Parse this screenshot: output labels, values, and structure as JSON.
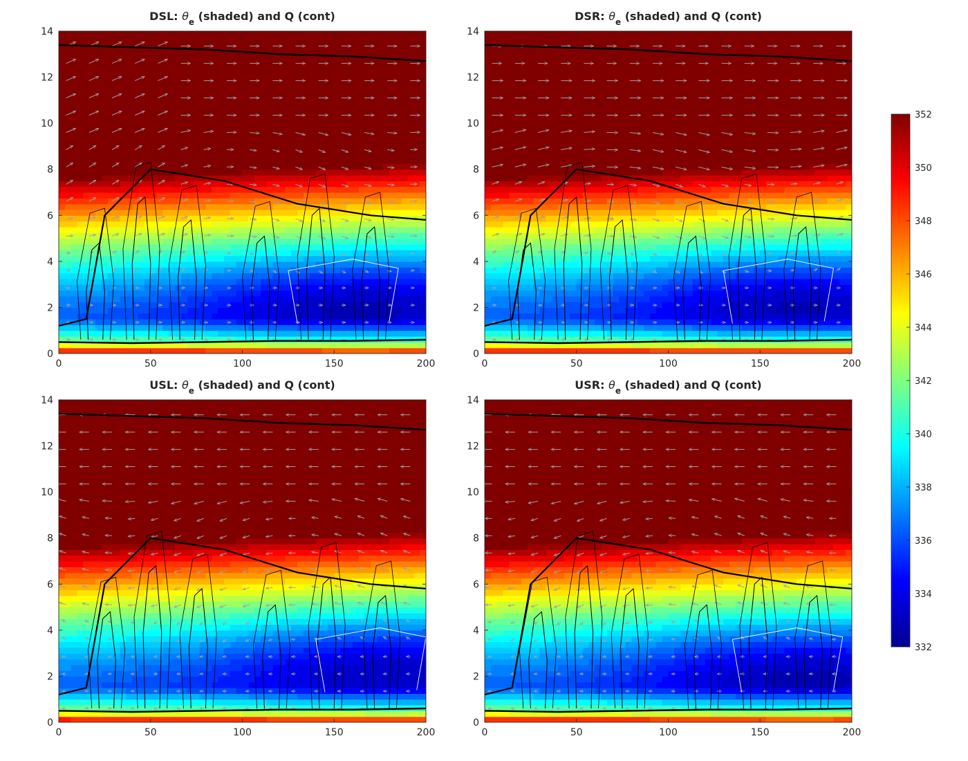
{
  "chart_data": [
    {
      "type": "heatmap",
      "panel": "DSL",
      "title_main": "DSL: ",
      "title_symbol": "θ",
      "title_sub": "e",
      "title_rest": " (shaded) and Q (cont)",
      "xlim": [
        0,
        200
      ],
      "ylim": [
        0,
        14
      ],
      "xticks": [
        0,
        50,
        100,
        150,
        200
      ],
      "yticks": [
        0,
        2,
        4,
        6,
        8,
        10,
        12,
        14
      ],
      "grid": false,
      "min_level": {
        "x": 160,
        "y": 2.5,
        "value": 332
      }
    },
    {
      "type": "heatmap",
      "panel": "DSR",
      "title_main": "DSR: ",
      "title_symbol": "θ",
      "title_sub": "e",
      "title_rest": " (shaded) and Q (cont)",
      "xlim": [
        0,
        200
      ],
      "ylim": [
        0,
        14
      ],
      "xticks": [
        0,
        50,
        100,
        150,
        200
      ],
      "yticks": [
        0,
        2,
        4,
        6,
        8,
        10,
        12,
        14
      ],
      "grid": false,
      "min_level": {
        "x": 165,
        "y": 2.6,
        "value": 333
      }
    },
    {
      "type": "heatmap",
      "panel": "USL",
      "title_main": "USL: ",
      "title_symbol": "θ",
      "title_sub": "e",
      "title_rest": " (shaded) and Q (cont)",
      "xlim": [
        0,
        200
      ],
      "ylim": [
        0,
        14
      ],
      "xticks": [
        0,
        50,
        100,
        150,
        200
      ],
      "yticks": [
        0,
        2,
        4,
        6,
        8,
        10,
        12,
        14
      ],
      "grid": false,
      "min_level": {
        "x": 175,
        "y": 2.8,
        "value": 333
      }
    },
    {
      "type": "heatmap",
      "panel": "USR",
      "title_main": "USR: ",
      "title_symbol": "θ",
      "title_sub": "e",
      "title_rest": " (shaded) and Q (cont)",
      "xlim": [
        0,
        200
      ],
      "ylim": [
        0,
        14
      ],
      "xticks": [
        0,
        50,
        100,
        150,
        200
      ],
      "yticks": [
        0,
        2,
        4,
        6,
        8,
        10,
        12,
        14
      ],
      "grid": false,
      "min_level": {
        "x": 170,
        "y": 2.5,
        "value": 333
      }
    }
  ],
  "colorbar": {
    "min": 332,
    "max": 352,
    "ticks": [
      332,
      334,
      336,
      338,
      340,
      342,
      344,
      346,
      348,
      350,
      352
    ],
    "colormap": "jet",
    "placement": "right"
  },
  "colors": {
    "contour_black": "#000000",
    "contour_white": "#ffffff",
    "vectors": "#a0a0a0",
    "axes": "#262626"
  }
}
